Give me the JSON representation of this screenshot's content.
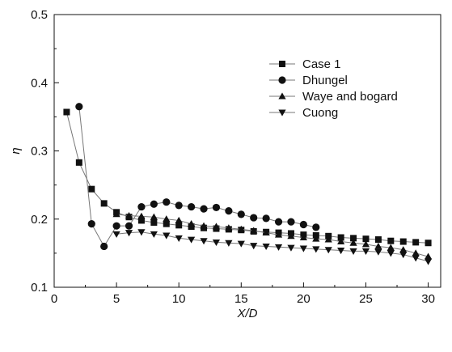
{
  "chart_data": {
    "type": "line",
    "xlabel": "X/D",
    "ylabel": "η",
    "xlim": [
      0,
      31
    ],
    "ylim": [
      0.1,
      0.5
    ],
    "xticks": [
      "0",
      "5",
      "10",
      "15",
      "20",
      "25",
      "30"
    ],
    "yticks": [
      "0.1",
      "0.2",
      "0.3",
      "0.4",
      "0.5"
    ],
    "legend_position": "top-right",
    "grid": false,
    "series": [
      {
        "name": "Case 1",
        "marker": "square",
        "x": [
          1,
          2,
          3,
          4,
          5,
          6,
          7,
          8,
          9,
          10,
          11,
          12,
          13,
          14,
          15,
          16,
          17,
          18,
          19,
          20,
          21,
          22,
          23,
          24,
          25,
          26,
          27,
          28,
          29,
          30
        ],
        "y": [
          0.357,
          0.283,
          0.244,
          0.223,
          0.21,
          0.203,
          0.198,
          0.195,
          0.193,
          0.191,
          0.189,
          0.187,
          0.186,
          0.185,
          0.184,
          0.182,
          0.181,
          0.18,
          0.179,
          0.177,
          0.176,
          0.175,
          0.173,
          0.172,
          0.171,
          0.17,
          0.168,
          0.167,
          0.166,
          0.165
        ]
      },
      {
        "name": "Dhungel",
        "marker": "circle",
        "x": [
          2,
          3,
          4,
          5,
          6,
          7,
          8,
          9,
          10,
          11,
          12,
          13,
          14,
          15,
          16,
          17,
          18,
          19,
          20,
          21
        ],
        "y": [
          0.365,
          0.193,
          0.16,
          0.19,
          0.19,
          0.218,
          0.222,
          0.225,
          0.22,
          0.218,
          0.215,
          0.217,
          0.212,
          0.207,
          0.202,
          0.201,
          0.196,
          0.196,
          0.192,
          0.188
        ]
      },
      {
        "name": "Waye and bogard",
        "marker": "triangle-up",
        "x": [
          5,
          6,
          7,
          8,
          9,
          10,
          11,
          12,
          13,
          14,
          15,
          16,
          17,
          18,
          19,
          20,
          21,
          22,
          23,
          24,
          25,
          26,
          27,
          28,
          29,
          30
        ],
        "y": [
          0.207,
          0.205,
          0.204,
          0.203,
          0.2,
          0.198,
          0.193,
          0.19,
          0.189,
          0.187,
          0.185,
          0.183,
          0.18,
          0.177,
          0.175,
          0.173,
          0.171,
          0.17,
          0.167,
          0.165,
          0.163,
          0.16,
          0.158,
          0.155,
          0.15,
          0.145
        ]
      },
      {
        "name": "Cuong",
        "marker": "triangle-down",
        "x": [
          5,
          6,
          7,
          8,
          9,
          10,
          11,
          12,
          13,
          14,
          15,
          16,
          17,
          18,
          19,
          20,
          21,
          22,
          23,
          24,
          25,
          26,
          27,
          28,
          29,
          30
        ],
        "y": [
          0.178,
          0.18,
          0.181,
          0.178,
          0.176,
          0.172,
          0.17,
          0.168,
          0.166,
          0.165,
          0.164,
          0.161,
          0.16,
          0.159,
          0.158,
          0.157,
          0.156,
          0.155,
          0.154,
          0.153,
          0.153,
          0.152,
          0.15,
          0.148,
          0.143,
          0.138
        ]
      }
    ]
  }
}
